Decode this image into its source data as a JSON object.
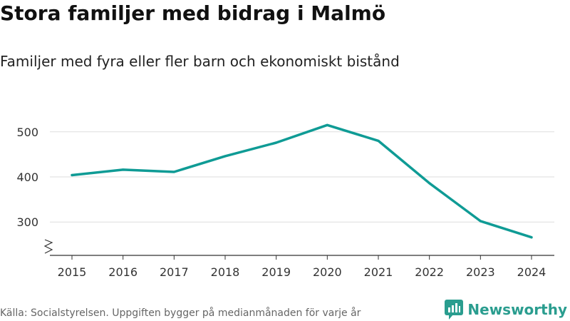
{
  "title": "Stora familjer med bidrag i Malmö",
  "subtitle": "Familjer med fyra eller fler barn och ekonomiskt bistånd",
  "source": "Källa: Socialstyrelsen. Uppgiften bygger på medianmånaden för varje år",
  "brand": "Newsworthy",
  "colors": {
    "line": "#0f9b95",
    "grid": "#dddddd",
    "axis": "#333333",
    "brand": "#2a9d8f"
  },
  "chart_data": {
    "type": "line",
    "title": "Stora familjer med bidrag i Malmö",
    "subtitle": "Familjer med fyra eller fler barn och ekonomiskt bistånd",
    "xlabel": "",
    "ylabel": "",
    "x": [
      "2015",
      "2016",
      "2017",
      "2018",
      "2019",
      "2020",
      "2021",
      "2022",
      "2023",
      "2024"
    ],
    "series": [
      {
        "name": "Familjer",
        "values": [
          404,
          416,
          411,
          446,
          476,
          515,
          480,
          386,
          302,
          266
        ]
      }
    ],
    "yticks": [
      300,
      400,
      500
    ],
    "ylim": [
      230,
      520
    ],
    "grid": true,
    "axis_break": true
  }
}
